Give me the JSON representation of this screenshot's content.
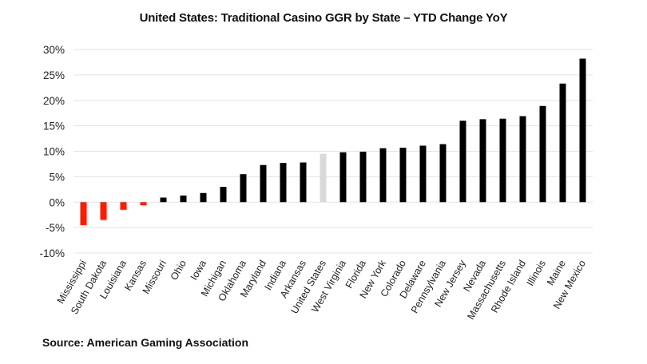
{
  "chart_data": {
    "type": "bar",
    "title": "United States: Traditional Casino GGR by State – YTD Change YoY",
    "xlabel": "",
    "ylabel": "",
    "ylim": [
      -10,
      30
    ],
    "yticks": [
      -10,
      -5,
      0,
      5,
      10,
      15,
      20,
      25,
      30
    ],
    "ytick_labels": [
      "-10%",
      "-5%",
      "0%",
      "5%",
      "10%",
      "15%",
      "20%",
      "25%",
      "30%"
    ],
    "grid": true,
    "legend": "none",
    "categories": [
      "Mississippi",
      "South Dakota",
      "Louisiana",
      "Kansas",
      "Missouri",
      "Ohio",
      "Iowa",
      "Michigan",
      "Oklahoma",
      "Maryland",
      "Indiana",
      "Arkansas",
      "United States",
      "West Virginia",
      "Florida",
      "New York",
      "Colorado",
      "Delaware",
      "Pennsylvania",
      "New Jersey",
      "Nevada",
      "Massachusetts",
      "Rhode Island",
      "Illinois",
      "Maine",
      "New Mexico"
    ],
    "values": [
      -4.5,
      -3.5,
      -1.5,
      -0.6,
      0.9,
      1.3,
      1.8,
      3.0,
      5.5,
      7.3,
      7.7,
      7.8,
      9.5,
      9.8,
      9.9,
      10.6,
      10.7,
      11.1,
      11.4,
      16.0,
      16.3,
      16.4,
      16.9,
      18.9,
      23.3,
      28.2
    ],
    "unit": "%",
    "colors": {
      "negative": "#ff1a00",
      "positive": "#000000",
      "highlight": "#d9d9d9"
    },
    "highlight_category": "United States",
    "source": "Source: American Gaming Association"
  }
}
